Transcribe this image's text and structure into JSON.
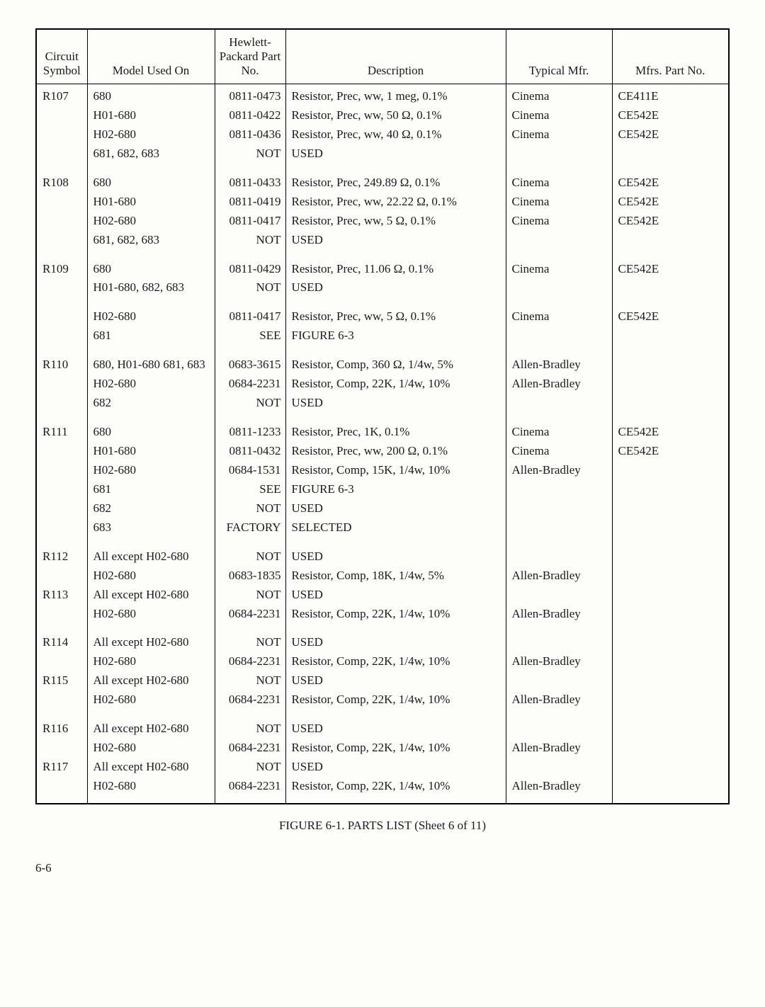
{
  "headers": {
    "sym": "Circuit\nSymbol",
    "model": "Model\nUsed On",
    "part": "Hewlett-\nPackard\nPart No.",
    "desc": "Description",
    "mfr": "Typical Mfr.",
    "mfrpart": "Mfrs. Part No."
  },
  "caption": "FIGURE 6-1.  PARTS LIST (Sheet 6 of 11)",
  "pagenum": "6-6",
  "rows": [
    {
      "sym": "R107",
      "model": "680",
      "part": "0811-0473",
      "desc": "Resistor, Prec, ww, 1 meg, 0.1%",
      "mfr": "Cinema",
      "mfrpart": "CE411E"
    },
    {
      "sym": "",
      "model": "H01-680",
      "part": "0811-0422",
      "desc": "Resistor, Prec, ww, 50 Ω, 0.1%",
      "mfr": "Cinema",
      "mfrpart": "CE542E"
    },
    {
      "sym": "",
      "model": "H02-680",
      "part": "0811-0436",
      "desc": "Resistor, Prec, ww, 40 Ω, 0.1%",
      "mfr": "Cinema",
      "mfrpart": "CE542E"
    },
    {
      "sym": "",
      "model": "681, 682, 683",
      "part": "NOT",
      "desc": "USED",
      "mfr": "",
      "mfrpart": ""
    },
    {
      "spacer": true
    },
    {
      "sym": "R108",
      "model": "680",
      "part": "0811-0433",
      "desc": "Resistor, Prec, 249.89 Ω, 0.1%",
      "mfr": "Cinema",
      "mfrpart": "CE542E"
    },
    {
      "sym": "",
      "model": "H01-680",
      "part": "0811-0419",
      "desc": "Resistor, Prec, ww, 22.22 Ω, 0.1%",
      "mfr": "Cinema",
      "mfrpart": "CE542E"
    },
    {
      "sym": "",
      "model": "H02-680",
      "part": "0811-0417",
      "desc": "Resistor, Prec, ww, 5 Ω, 0.1%",
      "mfr": "Cinema",
      "mfrpart": "CE542E"
    },
    {
      "sym": "",
      "model": "681, 682, 683",
      "part": "NOT",
      "desc": "USED",
      "mfr": "",
      "mfrpart": ""
    },
    {
      "spacer": true
    },
    {
      "sym": "R109",
      "model": "680",
      "part": "0811-0429",
      "desc": "Resistor, Prec, 11.06 Ω, 0.1%",
      "mfr": "Cinema",
      "mfrpart": "CE542E"
    },
    {
      "sym": "",
      "model": "H01-680, 682, 683",
      "part": "NOT",
      "desc": "USED",
      "mfr": "",
      "mfrpart": ""
    },
    {
      "spacer": true
    },
    {
      "sym": "",
      "model": "H02-680",
      "part": "0811-0417",
      "desc": "Resistor, Prec, ww, 5 Ω, 0.1%",
      "mfr": "Cinema",
      "mfrpart": "CE542E"
    },
    {
      "sym": "",
      "model": "681",
      "part": "SEE",
      "desc": "FIGURE 6-3",
      "mfr": "",
      "mfrpart": ""
    },
    {
      "spacer": true
    },
    {
      "sym": "R110",
      "model": "680, H01-680 681, 683",
      "part": "0683-3615",
      "desc": "Resistor, Comp, 360 Ω, 1/4w, 5%",
      "mfr": "Allen-Bradley",
      "mfrpart": ""
    },
    {
      "sym": "",
      "model": "H02-680",
      "part": "0684-2231",
      "desc": "Resistor, Comp, 22K, 1/4w, 10%",
      "mfr": "Allen-Bradley",
      "mfrpart": ""
    },
    {
      "sym": "",
      "model": "682",
      "part": "NOT",
      "desc": "USED",
      "mfr": "",
      "mfrpart": ""
    },
    {
      "spacer": true
    },
    {
      "sym": "R111",
      "model": "680",
      "part": "0811-1233",
      "desc": "Resistor, Prec, 1K, 0.1%",
      "mfr": "Cinema",
      "mfrpart": "CE542E"
    },
    {
      "sym": "",
      "model": "H01-680",
      "part": "0811-0432",
      "desc": "Resistor, Prec, ww, 200 Ω, 0.1%",
      "mfr": "Cinema",
      "mfrpart": "CE542E"
    },
    {
      "sym": "",
      "model": "H02-680",
      "part": "0684-1531",
      "desc": "Resistor, Comp, 15K, 1/4w, 10%",
      "mfr": "Allen-Bradley",
      "mfrpart": ""
    },
    {
      "sym": "",
      "model": "681",
      "part": "SEE",
      "desc": "FIGURE 6-3",
      "mfr": "",
      "mfrpart": ""
    },
    {
      "sym": "",
      "model": "682",
      "part": "NOT",
      "desc": "USED",
      "mfr": "",
      "mfrpart": ""
    },
    {
      "sym": "",
      "model": "683",
      "part": "FACTORY",
      "desc": "SELECTED",
      "mfr": "",
      "mfrpart": ""
    },
    {
      "spacer": true
    },
    {
      "sym": "R112",
      "model": "All except H02-680",
      "part": "NOT",
      "desc": "USED",
      "mfr": "",
      "mfrpart": ""
    },
    {
      "sym": "",
      "model": "H02-680",
      "part": "0683-1835",
      "desc": "Resistor, Comp, 18K, 1/4w, 5%",
      "mfr": "Allen-Bradley",
      "mfrpart": ""
    },
    {
      "sym": "R113",
      "model": "All except H02-680",
      "part": "NOT",
      "desc": "USED",
      "mfr": "",
      "mfrpart": ""
    },
    {
      "sym": "",
      "model": "H02-680",
      "part": "0684-2231",
      "desc": "Resistor, Comp, 22K, 1/4w, 10%",
      "mfr": "Allen-Bradley",
      "mfrpart": ""
    },
    {
      "spacer": true
    },
    {
      "sym": "R114",
      "model": "All except H02-680",
      "part": "NOT",
      "desc": "USED",
      "mfr": "",
      "mfrpart": ""
    },
    {
      "sym": "",
      "model": "H02-680",
      "part": "0684-2231",
      "desc": "Resistor, Comp, 22K, 1/4w, 10%",
      "mfr": "Allen-Bradley",
      "mfrpart": ""
    },
    {
      "sym": "R115",
      "model": "All except H02-680",
      "part": "NOT",
      "desc": "USED",
      "mfr": "",
      "mfrpart": ""
    },
    {
      "sym": "",
      "model": "H02-680",
      "part": "0684-2231",
      "desc": "Resistor, Comp, 22K, 1/4w, 10%",
      "mfr": "Allen-Bradley",
      "mfrpart": ""
    },
    {
      "spacer": true
    },
    {
      "sym": "R116",
      "model": "All except H02-680",
      "part": "NOT",
      "desc": "USED",
      "mfr": "",
      "mfrpart": ""
    },
    {
      "sym": "",
      "model": "H02-680",
      "part": "0684-2231",
      "desc": "Resistor, Comp, 22K, 1/4w, 10%",
      "mfr": "Allen-Bradley",
      "mfrpart": ""
    },
    {
      "sym": "R117",
      "model": "All except H02-680",
      "part": "NOT",
      "desc": "USED",
      "mfr": "",
      "mfrpart": ""
    },
    {
      "sym": "",
      "model": "H02-680",
      "part": "0684-2231",
      "desc": "Resistor, Comp, 22K, 1/4w, 10%",
      "mfr": "Allen-Bradley",
      "mfrpart": ""
    }
  ]
}
